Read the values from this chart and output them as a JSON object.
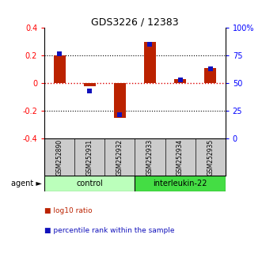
{
  "title": "GDS3226 / 12383",
  "samples": [
    "GSM252890",
    "GSM252931",
    "GSM252932",
    "GSM252933",
    "GSM252934",
    "GSM252935"
  ],
  "log10_ratio": [
    0.2,
    -0.02,
    -0.25,
    0.3,
    0.03,
    0.11
  ],
  "percentile_rank": [
    77,
    43,
    22,
    85,
    53,
    63
  ],
  "groups": [
    {
      "label": "control",
      "indices": [
        0,
        1,
        2
      ],
      "color": "#bbffbb"
    },
    {
      "label": "interleukin-22",
      "indices": [
        3,
        4,
        5
      ],
      "color": "#44dd44"
    }
  ],
  "ylim_left": [
    -0.4,
    0.4
  ],
  "ylim_right": [
    0,
    100
  ],
  "yticks_left": [
    -0.4,
    -0.2,
    0.0,
    0.2,
    0.4
  ],
  "yticks_right": [
    0,
    25,
    50,
    75,
    100
  ],
  "ytick_labels_left": [
    "-0.4",
    "-0.2",
    "0",
    "0.2",
    "0.4"
  ],
  "ytick_labels_right": [
    "0",
    "25",
    "50",
    "75",
    "100%"
  ],
  "bar_color_ratio": "#bb2200",
  "bar_color_pct": "#1111bb",
  "hline_color": "#dd0000",
  "dotted_color": "#000000",
  "legend_ratio_label": "log10 ratio",
  "legend_pct_label": "percentile rank within the sample",
  "agent_label": "agent",
  "bg_color": "#ffffff",
  "plot_bg": "#ffffff",
  "sample_bg": "#cccccc"
}
